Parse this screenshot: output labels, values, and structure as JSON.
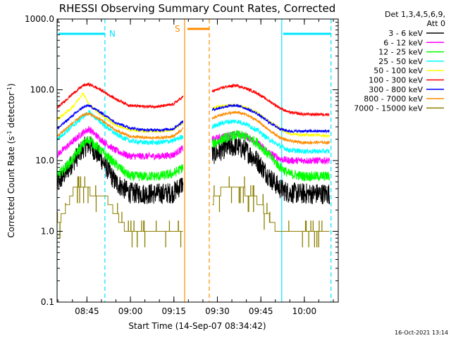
{
  "chart_data": {
    "type": "line",
    "title": "RHESSI Observing Summary Count Rates, Corrected",
    "xlabel": "Start Time (14-Sep-07 08:34:42)",
    "ylabel_main": "Corrected Count Rate (s",
    "ylabel_sup1": "-1",
    "ylabel_mid": " detector",
    "ylabel_sup2": "-1",
    "ylabel_end": ")",
    "yscale": "log",
    "ylim": [
      0.1,
      1000.0
    ],
    "xlim_min": [
      0,
      97
    ],
    "x_unit": "minutes after 08:34:42",
    "yticks": [
      {
        "value": 0.1,
        "label": "0.1"
      },
      {
        "value": 1.0,
        "label": "1.0"
      },
      {
        "value": 10.0,
        "label": "10.0"
      },
      {
        "value": 100.0,
        "label": "100.0"
      },
      {
        "value": 1000.0,
        "label": "1000.0"
      }
    ],
    "xticks": [
      {
        "value": 10.3,
        "label": "08:45"
      },
      {
        "value": 25.3,
        "label": "09:00"
      },
      {
        "value": 40.3,
        "label": "09:15"
      },
      {
        "value": 55.3,
        "label": "09:30"
      },
      {
        "value": 70.3,
        "label": "09:45"
      },
      {
        "value": 85.3,
        "label": "10:00"
      }
    ],
    "legend_header_line1": "Det 1,3,4,5,6,9,",
    "legend_header_line2": "Att 0",
    "legend_position": "right",
    "night_intervals": [
      [
        44,
        52.5
      ]
    ],
    "night_label": "S",
    "night_bar_color": "#ff8c00",
    "saa_bars": [
      {
        "start": 0,
        "end": 16.5,
        "label": "N",
        "color": "#00e5ff"
      },
      {
        "start": 77.5,
        "end": 94.5,
        "label": "",
        "color": "#00e5ff"
      }
    ],
    "markers": [
      {
        "x": 0,
        "color": "#00e5ff",
        "style": "solid"
      },
      {
        "x": 16.5,
        "color": "#00e5ff",
        "style": "dashed"
      },
      {
        "x": 44,
        "color": "#ff8c00",
        "style": "solid"
      },
      {
        "x": 52.5,
        "color": "#ff8c00",
        "style": "dashed"
      },
      {
        "x": 77.5,
        "color": "#00e5ff",
        "style": "solid"
      },
      {
        "x": 94.5,
        "color": "#00e5ff",
        "style": "dashed"
      }
    ],
    "series": [
      {
        "name": "3 - 6 keV",
        "color": "#000000",
        "seg1": {
          "t": [
            0,
            5,
            9,
            11,
            15,
            20,
            25,
            30,
            35,
            40,
            43.5
          ],
          "y": [
            4.5,
            9,
            15,
            17,
            11,
            5,
            3.5,
            3.4,
            3.4,
            3.5,
            4.8
          ]
        },
        "seg2": {
          "t": [
            53.5,
            58,
            62,
            65,
            69,
            73,
            77,
            80,
            85,
            90,
            94
          ],
          "y": [
            12,
            15,
            16,
            14,
            10,
            6,
            4,
            3.5,
            3.4,
            3.4,
            3.4
          ]
        },
        "noise": 0.15
      },
      {
        "name": "6 - 12 keV",
        "color": "#ff00ff",
        "seg1": {
          "t": [
            0,
            5,
            9,
            11,
            15,
            20,
            25,
            30,
            35,
            40,
            43.5
          ],
          "y": [
            12,
            18,
            25,
            28,
            20,
            14,
            11.5,
            11.5,
            11.5,
            12,
            15
          ]
        },
        "seg2": {
          "t": [
            53.5,
            58,
            62,
            65,
            69,
            73,
            77,
            80,
            85,
            90,
            94
          ],
          "y": [
            20,
            22,
            24,
            22,
            18,
            13,
            10.5,
            10,
            10,
            10,
            10
          ]
        },
        "noise": 0.05
      },
      {
        "name": "12 - 25 keV",
        "color": "#00ff00",
        "seg1": {
          "t": [
            0,
            5,
            9,
            11,
            15,
            20,
            25,
            30,
            35,
            40,
            43.5
          ],
          "y": [
            6,
            10,
            17,
            20,
            14,
            9,
            6,
            6,
            6,
            6.5,
            8
          ]
        },
        "seg2": {
          "t": [
            53.5,
            58,
            62,
            65,
            69,
            73,
            77,
            80,
            85,
            90,
            94
          ],
          "y": [
            17,
            21,
            23,
            22,
            18,
            12,
            8,
            6.5,
            6,
            6,
            6
          ]
        },
        "noise": 0.07
      },
      {
        "name": "25 - 50 keV",
        "color": "#00ffff",
        "seg1": {
          "t": [
            0,
            5,
            9,
            11,
            15,
            20,
            25,
            30,
            35,
            40,
            43.5
          ],
          "y": [
            20,
            30,
            42,
            48,
            35,
            24,
            19,
            18,
            18,
            19,
            22
          ]
        },
        "seg2": {
          "t": [
            53.5,
            58,
            62,
            65,
            69,
            73,
            77,
            80,
            85,
            90,
            94
          ],
          "y": [
            30,
            35,
            36,
            33,
            27,
            20,
            16,
            14,
            13.5,
            13.5,
            13.5
          ]
        },
        "noise": 0.035
      },
      {
        "name": "50 - 100 keV",
        "color": "#ffff00",
        "seg1": {
          "t": [
            0,
            5,
            9,
            11,
            15,
            20,
            25,
            30,
            35,
            40,
            43.5
          ],
          "y": [
            38,
            55,
            90,
            62,
            45,
            32,
            27,
            26,
            26,
            27,
            35
          ]
        },
        "seg2": {
          "t": [
            53.5,
            58,
            62,
            65,
            69,
            73,
            77,
            80,
            85,
            90,
            94
          ],
          "y": [
            55,
            60,
            60,
            56,
            48,
            36,
            28,
            24,
            23,
            23,
            22
          ]
        },
        "noise": 0.02
      },
      {
        "name": "100 - 300 keV",
        "color": "#ff0000",
        "seg1": {
          "t": [
            0,
            5,
            9,
            11,
            15,
            20,
            25,
            30,
            35,
            40,
            43.5
          ],
          "y": [
            55,
            85,
            115,
            120,
            100,
            75,
            60,
            58,
            58,
            62,
            80
          ]
        },
        "seg2": {
          "t": [
            53.5,
            58,
            62,
            65,
            69,
            73,
            77,
            80,
            85,
            90,
            94
          ],
          "y": [
            95,
            110,
            115,
            105,
            90,
            70,
            55,
            48,
            45,
            45,
            45
          ]
        },
        "noise": 0.02
      },
      {
        "name": "300 - 800 keV",
        "color": "#0000ff",
        "seg1": {
          "t": [
            0,
            5,
            9,
            11,
            15,
            20,
            25,
            30,
            35,
            40,
            43.5
          ],
          "y": [
            28,
            42,
            57,
            60,
            48,
            35,
            29,
            27,
            27,
            28,
            36
          ]
        },
        "seg2": {
          "t": [
            53.5,
            58,
            62,
            65,
            69,
            73,
            77,
            80,
            85,
            90,
            94
          ],
          "y": [
            52,
            58,
            60,
            55,
            46,
            35,
            28,
            26,
            26,
            26,
            26
          ]
        },
        "noise": 0.02
      },
      {
        "name": "800 - 7000 keV",
        "color": "#ff8c00",
        "seg1": {
          "t": [
            0,
            5,
            9,
            11,
            15,
            20,
            25,
            30,
            35,
            40,
            43.5
          ],
          "y": [
            22,
            33,
            44,
            46,
            38,
            27,
            22,
            21,
            21,
            22,
            28
          ]
        },
        "seg2": {
          "t": [
            53.5,
            58,
            62,
            65,
            69,
            73,
            77,
            80,
            85,
            90,
            94
          ],
          "y": [
            40,
            46,
            48,
            45,
            37,
            27,
            21,
            19,
            18,
            18,
            18
          ]
        },
        "noise": 0.02
      },
      {
        "name": "7000 - 15000 keV",
        "color": "#8b8000",
        "seg1": {
          "t": [
            0,
            4,
            5,
            8,
            12,
            16,
            18,
            20,
            22,
            24,
            25,
            30,
            35,
            40,
            43.5
          ],
          "y": [
            1.2,
            2.5,
            3.5,
            4.5,
            3.5,
            3.5,
            2.5,
            1.8,
            1.4,
            1.0,
            1.0,
            1.0,
            1.0,
            1.0,
            1.0
          ]
        },
        "seg2": {
          "t": [
            53.5,
            56,
            58,
            62,
            66,
            70,
            72,
            74,
            76,
            78,
            85,
            90,
            94
          ],
          "y": [
            2.6,
            3.5,
            4.3,
            4.0,
            3.5,
            2.5,
            1.8,
            1.4,
            1.0,
            1.0,
            1.0,
            1.0,
            1.0
          ]
        },
        "noise": 0.1,
        "stepped": true
      }
    ],
    "grid": false
  },
  "footer_date": "16-Oct-2021 13:14"
}
